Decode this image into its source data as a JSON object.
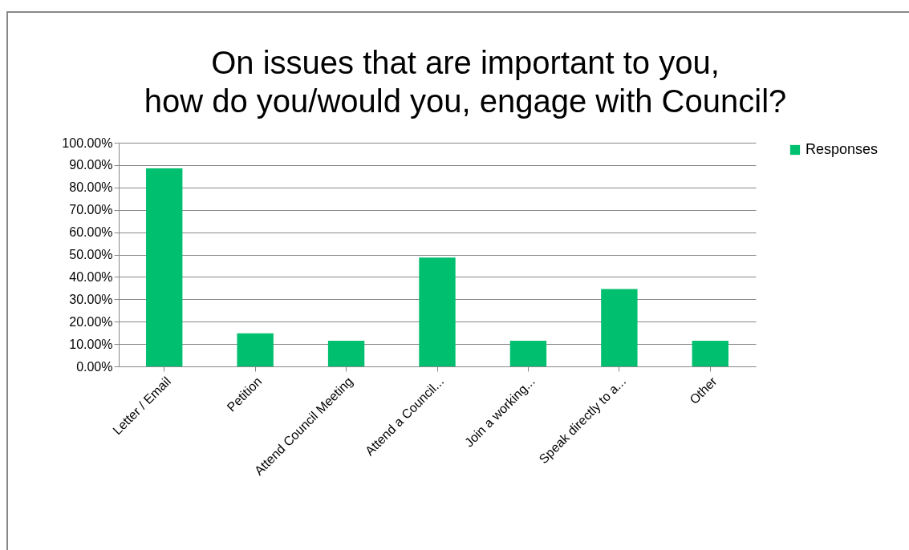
{
  "chart_data": {
    "type": "bar",
    "title": "On issues that are important to you, how do you/would you, engage with Council?",
    "categories": [
      "Letter / Email",
      "Petition",
      "Attend Council Meeting",
      "Attend a Council...",
      "Join a working...",
      "Speak directly to a...",
      "Other"
    ],
    "series": [
      {
        "name": "Responses",
        "color": "#00bf6f",
        "values": [
          88.5,
          14.8,
          11.5,
          48.7,
          11.5,
          34.6,
          11.5
        ]
      }
    ],
    "ylim": [
      0,
      100
    ],
    "yticks": [
      {
        "value": 0,
        "label": "0.00%"
      },
      {
        "value": 10,
        "label": "10.00%"
      },
      {
        "value": 20,
        "label": "20.00%"
      },
      {
        "value": 30,
        "label": "30.00%"
      },
      {
        "value": 40,
        "label": "40.00%"
      },
      {
        "value": 50,
        "label": "50.00%"
      },
      {
        "value": 60,
        "label": "60.00%"
      },
      {
        "value": 70,
        "label": "70.00%"
      },
      {
        "value": 80,
        "label": "80.00%"
      },
      {
        "value": 90,
        "label": "90.00%"
      },
      {
        "value": 100,
        "label": "100.00%"
      }
    ],
    "grid": "y",
    "legend": "right"
  }
}
